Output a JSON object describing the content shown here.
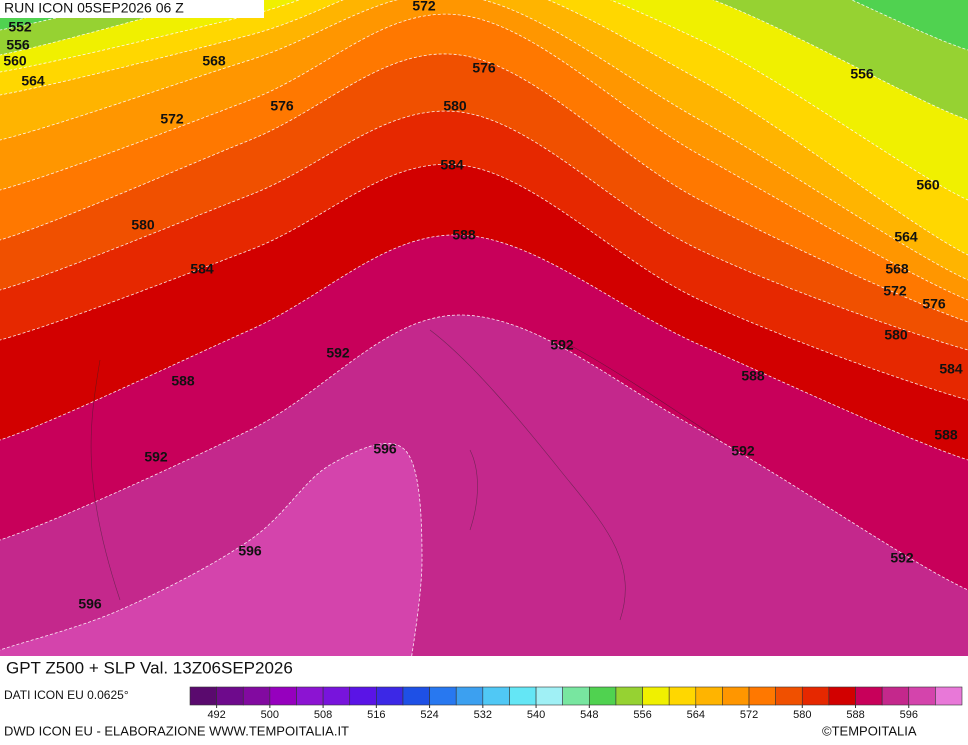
{
  "header": {
    "run": "RUN ICON 05SEP2026 06 Z"
  },
  "map": {
    "contour_labels": [
      552,
      556,
      560,
      564,
      568,
      572,
      576,
      576,
      572,
      580,
      584,
      588,
      580,
      584,
      592,
      588,
      592,
      596,
      596,
      596,
      592,
      588,
      592,
      592,
      588,
      584,
      580,
      576,
      572,
      568,
      564,
      560,
      556
    ]
  },
  "title": "GPT Z500 + SLP Val. 13Z06SEP2026",
  "legend": {
    "source": "DATI ICON EU 0.0625°",
    "colorbar_lim": [
      488,
      604
    ],
    "colors": [
      "#5a0a6e",
      "#6e0a8c",
      "#820aa0",
      "#9600be",
      "#8c14d2",
      "#7814dc",
      "#5a14e6",
      "#3c28e6",
      "#1e50e6",
      "#2878f0",
      "#3ca0f0",
      "#50c8f5",
      "#64e6f5",
      "#a0f0f5",
      "#78e6a0",
      "#50d250",
      "#96d232",
      "#f0f000",
      "#ffd700",
      "#ffb400",
      "#ff9600",
      "#ff7800",
      "#f05000",
      "#e62800",
      "#d20000",
      "#c8005a",
      "#c4288c",
      "#d444ac",
      "#e878d8"
    ],
    "ticks": [
      492,
      500,
      508,
      516,
      524,
      532,
      540,
      548,
      556,
      564,
      572,
      580,
      588,
      596
    ]
  },
  "footer": {
    "credit": "DWD ICON EU - ELABORAZIONE WWW.TEMPOITALIA.IT",
    "brand": "©TEMPOITALIA"
  }
}
